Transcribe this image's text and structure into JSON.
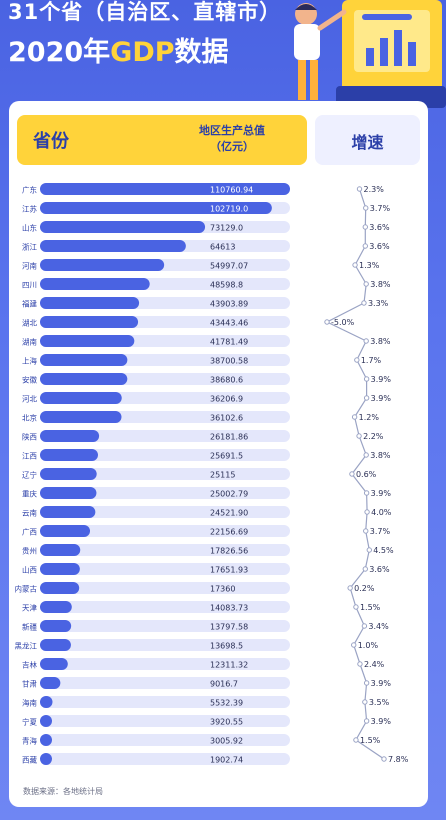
{
  "header": {
    "title_line1": "31个省（自治区、直辖市）",
    "title_line2_prefix": "2020年",
    "title_line2_accent": "GDP",
    "title_line2_suffix": "数据"
  },
  "table_header": {
    "province": "省份",
    "gdp_line1": "地区生产总值",
    "gdp_line2": "（亿元）",
    "growth": "增速"
  },
  "footnote": "数据来源：各地统计局",
  "colors": {
    "background": "#4a63e2",
    "bar": "#4a63e2",
    "bar_track": "#e4e7fb",
    "header_yellow": "#ffd33a",
    "line": "#9aa3c4"
  },
  "chart_data": {
    "type": "bar",
    "categories": [
      "广东",
      "江苏",
      "山东",
      "浙江",
      "河南",
      "四川",
      "福建",
      "湖北",
      "湖南",
      "上海",
      "安徽",
      "河北",
      "北京",
      "陕西",
      "江西",
      "辽宁",
      "重庆",
      "云南",
      "广西",
      "贵州",
      "山西",
      "内蒙古",
      "天津",
      "新疆",
      "黑龙江",
      "吉林",
      "甘肃",
      "海南",
      "宁夏",
      "青海",
      "西藏"
    ],
    "value_labels": [
      "110760.94",
      "102719.0",
      "73129.0",
      "64613",
      "54997.07",
      "48598.8",
      "43903.89",
      "43443.46",
      "41781.49",
      "38700.58",
      "38680.6",
      "36206.9",
      "36102.6",
      "26181.86",
      "25691.5",
      "25115",
      "25002.79",
      "24521.90",
      "22156.69",
      "17826.56",
      "17651.93",
      "17360",
      "14083.73",
      "13797.58",
      "13698.5",
      "12311.32",
      "9016.7",
      "5532.39",
      "3920.55",
      "3005.92",
      "1902.74"
    ],
    "values": [
      110760.94,
      102719.0,
      73129.0,
      64613,
      54997.07,
      48598.8,
      43903.89,
      43443.46,
      41781.49,
      38700.58,
      38680.6,
      36206.9,
      36102.6,
      26181.86,
      25691.5,
      25115,
      25002.79,
      24521.9,
      22156.69,
      17826.56,
      17651.93,
      17360,
      14083.73,
      13797.58,
      13698.5,
      12311.32,
      9016.7,
      5532.39,
      3920.55,
      3005.92,
      1902.74
    ],
    "growth_labels": [
      "2.3%",
      "3.7%",
      "3.6%",
      "3.6%",
      "1.3%",
      "3.8%",
      "3.3%",
      "-5.0%",
      "3.8%",
      "1.7%",
      "3.9%",
      "3.9%",
      "1.2%",
      "2.2%",
      "3.8%",
      "0.6%",
      "3.9%",
      "4.0%",
      "3.7%",
      "4.5%",
      "3.6%",
      "0.2%",
      "1.5%",
      "3.4%",
      "1.0%",
      "2.4%",
      "3.9%",
      "3.5%",
      "3.9%",
      "1.5%",
      "7.8%"
    ],
    "growth": [
      2.3,
      3.7,
      3.6,
      3.6,
      1.3,
      3.8,
      3.3,
      -5.0,
      3.8,
      1.7,
      3.9,
      3.9,
      1.2,
      2.2,
      3.8,
      0.6,
      3.9,
      4.0,
      3.7,
      4.5,
      3.6,
      0.2,
      1.5,
      3.4,
      1.0,
      2.4,
      3.9,
      3.5,
      3.9,
      1.5,
      7.8
    ],
    "xlim": [
      0,
      110760.94
    ],
    "growth_range": [
      -5.0,
      7.8
    ]
  }
}
